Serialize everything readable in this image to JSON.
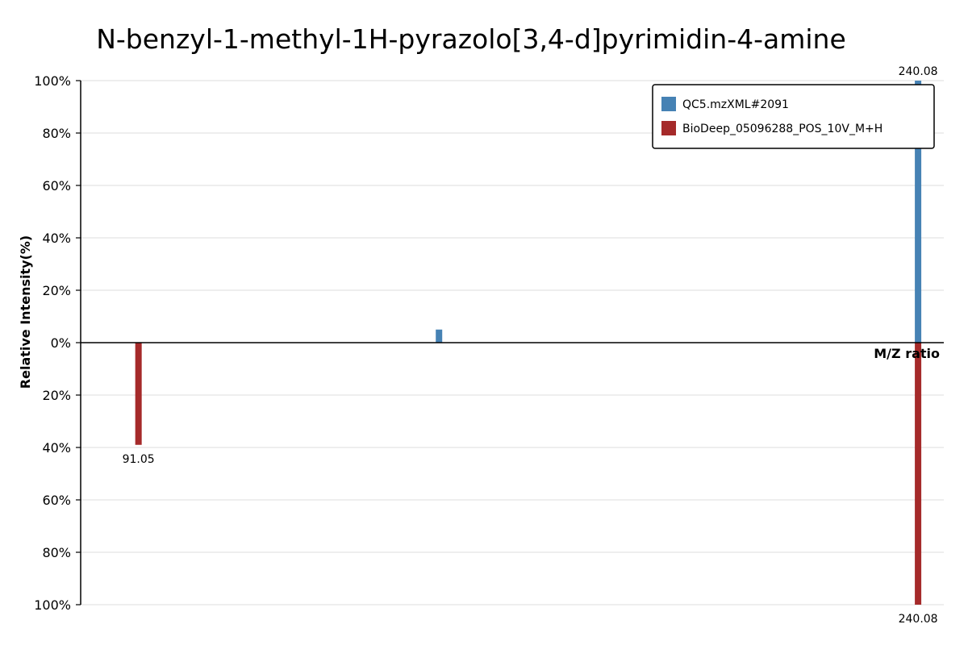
{
  "chart_data": {
    "type": "bar",
    "title": "N-benzyl-1-methyl-1H-pyrazolo[3,4-d]pyrimidin-4-amine",
    "xlabel": "M/Z ratio",
    "ylabel": "Relative Intensity(%)",
    "xlim": [
      80,
      245
    ],
    "ylim": [
      -100,
      100
    ],
    "y_ticks": [
      "100%",
      "80%",
      "60%",
      "40%",
      "20%",
      "0%",
      "20%",
      "40%",
      "60%",
      "80%",
      "100%"
    ],
    "grid": true,
    "legend_position": "top-right",
    "series": [
      {
        "name": "QC5.mzXML#2091",
        "color": "#4682b4",
        "direction": "up",
        "peaks": [
          {
            "mz": 148.5,
            "intensity": 5,
            "label": ""
          },
          {
            "mz": 240.08,
            "intensity": 100,
            "label": "240.08"
          }
        ]
      },
      {
        "name": "BioDeep_05096288_POS_10V_M+H",
        "color": "#a52a2a",
        "direction": "down",
        "peaks": [
          {
            "mz": 91.05,
            "intensity": 39,
            "label": "91.05"
          },
          {
            "mz": 240.08,
            "intensity": 100,
            "label": "240.08"
          }
        ]
      }
    ]
  }
}
